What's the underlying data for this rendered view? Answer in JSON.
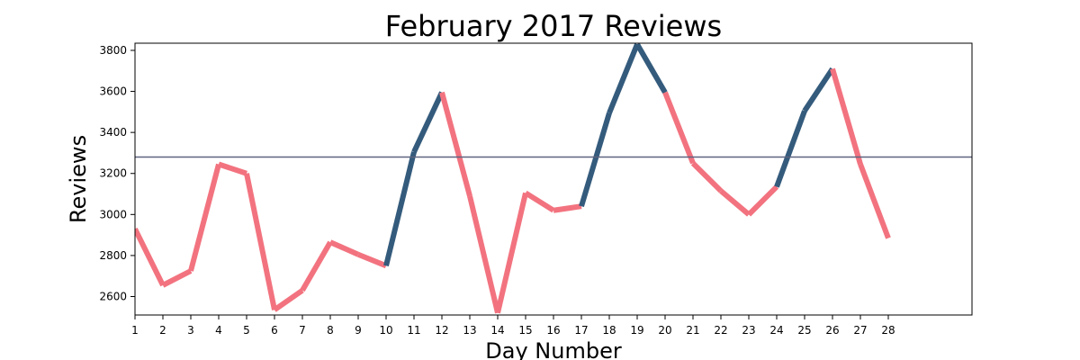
{
  "chart_data": {
    "type": "line",
    "title": "February 2017 Reviews",
    "xlabel": "Day Number",
    "ylabel": "Reviews",
    "x": [
      1,
      2,
      3,
      4,
      5,
      6,
      7,
      8,
      9,
      10,
      11,
      12,
      13,
      14,
      15,
      16,
      17,
      18,
      19,
      20,
      21,
      22,
      23,
      24,
      25,
      26,
      27,
      28
    ],
    "y": [
      2930,
      2655,
      2725,
      3245,
      3200,
      2535,
      2630,
      2865,
      2805,
      2750,
      3305,
      3595,
      3090,
      2520,
      3105,
      3020,
      3040,
      3495,
      3830,
      3595,
      3250,
      3115,
      3000,
      3135,
      3505,
      3710,
      3245,
      2885
    ],
    "xlim": [
      1,
      31
    ],
    "ylim": [
      2510,
      3835
    ],
    "xticks": [
      1,
      2,
      3,
      4,
      5,
      6,
      7,
      8,
      9,
      10,
      11,
      12,
      13,
      14,
      15,
      16,
      17,
      18,
      19,
      20,
      21,
      22,
      23,
      24,
      25,
      26,
      27,
      28
    ],
    "yticks": [
      2600,
      2800,
      3000,
      3200,
      3400,
      3600,
      3800
    ],
    "reference_line": 3280,
    "above_color": "#345b7c",
    "below_color": "#f2737f",
    "reference_color": "#5d6480",
    "grid": false,
    "legend": "none"
  }
}
